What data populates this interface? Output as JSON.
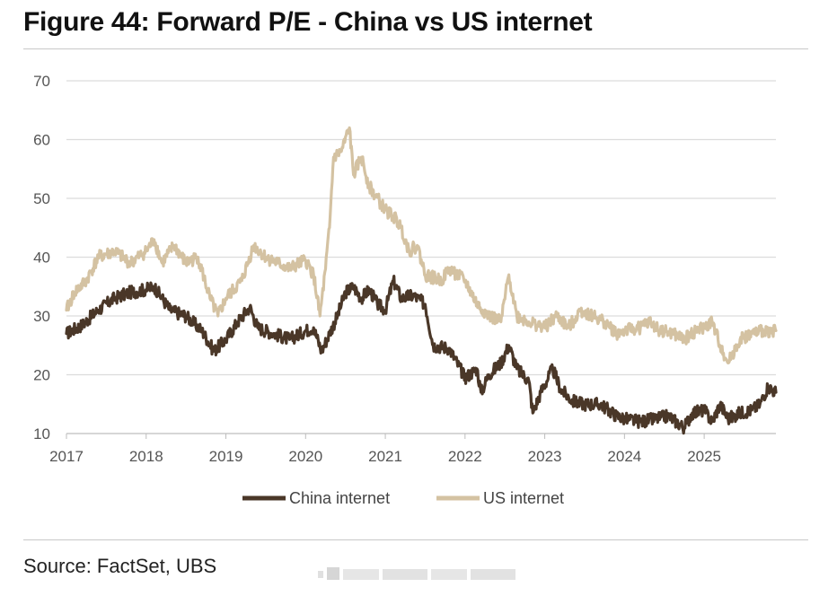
{
  "figure": {
    "title": "Figure 44: Forward P/E - China vs US internet",
    "source": "Source: FactSet, UBS"
  },
  "chart_data": {
    "type": "line",
    "title": "Figure 44: Forward P/E - China vs US internet",
    "xlabel": "",
    "ylabel": "",
    "xlim": [
      2017.0,
      2025.9
    ],
    "ylim": [
      10,
      70
    ],
    "yticks": [
      10,
      20,
      30,
      40,
      50,
      60,
      70
    ],
    "xticks": [
      2017,
      2018,
      2019,
      2020,
      2021,
      2022,
      2023,
      2024,
      2025
    ],
    "xtick_labels": [
      "2017",
      "2018",
      "2019",
      "2020",
      "2021",
      "2022",
      "2023",
      "2024",
      "2025"
    ],
    "grid": "horizontal",
    "legend_position": "bottom-center",
    "series": [
      {
        "name": "China internet",
        "color": "#4a3728",
        "x": [
          2017.0,
          2017.2,
          2017.4,
          2017.6,
          2017.8,
          2018.0,
          2018.1,
          2018.2,
          2018.3,
          2018.5,
          2018.7,
          2018.85,
          2019.0,
          2019.15,
          2019.3,
          2019.4,
          2019.6,
          2019.8,
          2020.0,
          2020.1,
          2020.2,
          2020.3,
          2020.4,
          2020.5,
          2020.6,
          2020.7,
          2020.8,
          2020.9,
          2021.0,
          2021.1,
          2021.2,
          2021.35,
          2021.5,
          2021.6,
          2021.8,
          2022.0,
          2022.15,
          2022.2,
          2022.3,
          2022.45,
          2022.55,
          2022.65,
          2022.8,
          2022.85,
          2022.95,
          2023.1,
          2023.2,
          2023.35,
          2023.5,
          2023.7,
          2023.9,
          2024.0,
          2024.2,
          2024.4,
          2024.55,
          2024.65,
          2024.75,
          2024.85,
          2025.0,
          2025.1,
          2025.2,
          2025.3,
          2025.45,
          2025.6,
          2025.7,
          2025.8,
          2025.9
        ],
        "values": [
          27,
          28.5,
          31,
          33,
          34,
          34.5,
          35,
          33,
          31,
          30,
          27.5,
          24,
          26,
          29,
          31.5,
          28,
          27,
          26,
          27.5,
          28,
          24,
          27,
          30,
          34,
          35,
          33,
          34.5,
          32,
          31,
          36,
          33,
          33.5,
          32,
          25,
          24.5,
          19.5,
          21,
          17,
          20,
          22,
          25,
          21,
          19,
          13.5,
          17,
          21,
          17.5,
          15.5,
          15,
          15,
          13,
          12.5,
          12,
          12.5,
          13,
          12,
          11,
          13.5,
          14,
          12,
          15,
          12.5,
          13.5,
          14,
          15,
          18,
          17
        ]
      },
      {
        "name": "US internet",
        "color": "#d4c2a2",
        "x": [
          2017.0,
          2017.1,
          2017.25,
          2017.4,
          2017.6,
          2017.8,
          2018.0,
          2018.1,
          2018.2,
          2018.35,
          2018.5,
          2018.65,
          2018.8,
          2018.9,
          2019.0,
          2019.2,
          2019.35,
          2019.5,
          2019.65,
          2019.8,
          2020.0,
          2020.1,
          2020.18,
          2020.25,
          2020.3,
          2020.35,
          2020.45,
          2020.55,
          2020.6,
          2020.7,
          2020.8,
          2021.0,
          2021.1,
          2021.2,
          2021.3,
          2021.4,
          2021.5,
          2021.7,
          2021.8,
          2022.0,
          2022.15,
          2022.3,
          2022.45,
          2022.55,
          2022.65,
          2022.8,
          2023.0,
          2023.15,
          2023.3,
          2023.45,
          2023.6,
          2023.75,
          2023.9,
          2024.0,
          2024.2,
          2024.3,
          2024.45,
          2024.6,
          2024.75,
          2024.9,
          2025.0,
          2025.1,
          2025.2,
          2025.3,
          2025.45,
          2025.6,
          2025.75,
          2025.9
        ],
        "values": [
          31,
          34,
          36,
          40,
          41,
          39,
          41,
          43,
          39,
          42,
          39,
          40,
          33,
          30,
          33,
          36,
          42,
          40,
          39,
          38,
          39.5,
          37,
          30,
          38,
          45,
          57,
          58,
          62,
          54,
          57,
          52,
          48,
          47,
          45,
          41,
          42,
          37,
          36,
          38,
          36,
          32,
          30,
          29,
          37,
          30,
          29,
          28,
          30,
          28,
          31,
          30,
          29,
          27,
          27.5,
          28,
          29,
          27.5,
          27,
          26,
          27.5,
          28,
          29,
          25,
          22,
          26,
          27,
          27.5,
          27.5
        ]
      }
    ]
  }
}
